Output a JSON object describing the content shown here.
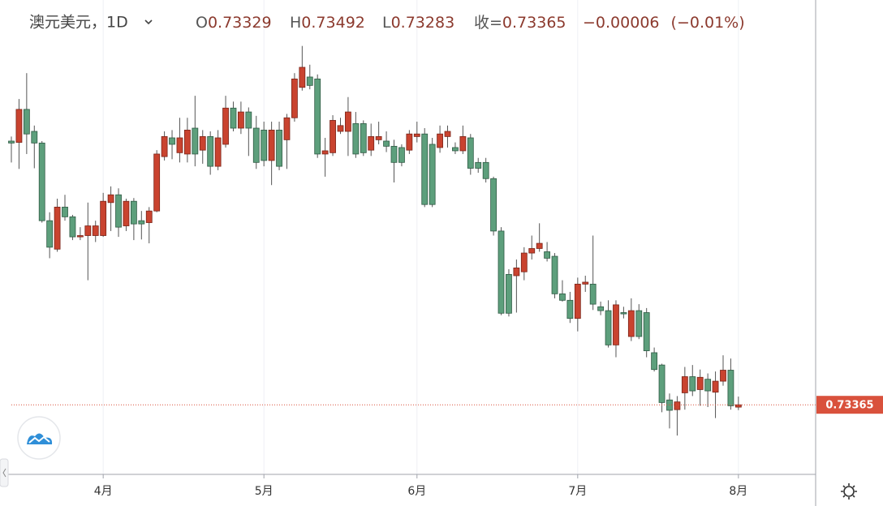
{
  "chart_data": {
    "type": "candlestick",
    "title": "澳元美元，1D",
    "ohlc_labels": [
      "O",
      "H",
      "L",
      "收="
    ],
    "change": "−0.00006",
    "change_pct": "(−0.01%)",
    "categories": [
      null,
      null,
      null,
      null,
      null,
      null,
      null,
      null,
      null,
      null,
      null,
      null,
      "4月",
      null,
      null,
      null,
      null,
      null,
      null,
      null,
      null,
      null,
      null,
      null,
      null,
      null,
      null,
      null,
      null,
      null,
      null,
      null,
      null,
      "5月",
      null,
      null,
      null,
      null,
      null,
      null,
      null,
      null,
      null,
      null,
      null,
      null,
      null,
      null,
      null,
      null,
      null,
      null,
      null,
      "6月",
      null,
      null,
      null,
      null,
      null,
      null,
      null,
      null,
      null,
      null,
      null,
      null,
      null,
      null,
      null,
      null,
      null,
      null,
      null,
      null,
      "7月",
      null,
      null,
      null,
      null,
      null,
      null,
      null,
      null,
      null,
      null,
      null,
      null,
      null,
      null,
      null,
      null,
      null,
      null,
      null,
      null,
      "8月"
    ],
    "open": [
      0.7744,
      0.7742,
      0.7793,
      0.7759,
      0.7741,
      0.7621,
      0.7577,
      0.7642,
      0.7627,
      0.7596,
      0.7598,
      0.7598,
      0.7598,
      0.7649,
      0.7661,
      0.7613,
      0.7651,
      0.7621,
      0.7618,
      0.7636,
      0.772,
      0.7749,
      0.7726,
      0.7724,
      0.7764,
      0.773,
      0.7751,
      0.7705,
      0.7739,
      0.7795,
      0.7764,
      0.7789,
      0.7764,
      0.7761,
      0.7714,
      0.7761,
      0.7746,
      0.778,
      0.7827,
      0.7843,
      0.784,
      0.7724,
      0.7726,
      0.7759,
      0.7759,
      0.7771,
      0.7771,
      0.773,
      0.7746,
      0.7744,
      0.7736,
      0.7734,
      0.773,
      0.7751,
      0.7755,
      0.7739,
      0.7734,
      0.7751,
      0.7734,
      0.7729,
      0.7749,
      0.7711,
      0.7711,
      0.7686,
      0.7605,
      0.7538,
      0.7536,
      0.7542,
      0.7571,
      0.7578,
      0.7573,
      0.7566,
      0.7508,
      0.7498,
      0.747,
      0.7523,
      0.7523,
      0.7488,
      0.7482,
      0.7429,
      0.7479,
      0.7442,
      0.7482,
      0.7479,
      0.7417,
      0.7398,
      0.7344,
      0.7329,
      0.7355,
      0.738,
      0.736,
      0.7376,
      0.7356,
      0.7373,
      0.739,
      0.73329
    ],
    "high": [
      0.7751,
      0.7809,
      0.7849,
      0.7768,
      0.7744,
      0.7634,
      0.7655,
      0.7661,
      0.763,
      0.7611,
      0.7649,
      0.7621,
      0.7664,
      0.7674,
      0.7671,
      0.7655,
      0.7656,
      0.7636,
      0.7642,
      0.773,
      0.7759,
      0.7761,
      0.778,
      0.778,
      0.7814,
      0.7761,
      0.7759,
      0.7761,
      0.7814,
      0.7805,
      0.7805,
      0.7796,
      0.7783,
      0.7774,
      0.7774,
      0.7774,
      0.7786,
      0.7849,
      0.7891,
      0.7862,
      0.7847,
      0.7749,
      0.7784,
      0.778,
      0.7812,
      0.7789,
      0.7776,
      0.7771,
      0.7774,
      0.7759,
      0.7746,
      0.7739,
      0.7761,
      0.7774,
      0.7764,
      0.7749,
      0.7768,
      0.7768,
      0.7742,
      0.7768,
      0.7755,
      0.7718,
      0.7718,
      0.7689,
      0.7611,
      0.7546,
      0.7561,
      0.758,
      0.7598,
      0.7617,
      0.7588,
      0.7571,
      0.7529,
      0.7511,
      0.7533,
      0.7536,
      0.7598,
      0.7496,
      0.7498,
      0.7498,
      0.7488,
      0.7501,
      0.7492,
      0.7486,
      0.7425,
      0.74,
      0.7354,
      0.735,
      0.7395,
      0.7398,
      0.7391,
      0.7385,
      0.7388,
      0.7413,
      0.7408,
      0.73492
    ],
    "low": [
      0.7711,
      0.7701,
      0.7724,
      0.7702,
      0.7618,
      0.7563,
      0.7573,
      0.7621,
      0.7591,
      0.7591,
      0.7529,
      0.7588,
      0.7596,
      0.7605,
      0.7596,
      0.7605,
      0.7591,
      0.7592,
      0.7586,
      0.7634,
      0.7714,
      0.7716,
      0.7711,
      0.7711,
      0.7705,
      0.7709,
      0.7692,
      0.7699,
      0.7734,
      0.7759,
      0.7755,
      0.7721,
      0.7701,
      0.7705,
      0.7676,
      0.7699,
      0.7701,
      0.7774,
      0.7822,
      0.7824,
      0.7718,
      0.7689,
      0.7721,
      0.7755,
      0.7721,
      0.7718,
      0.7721,
      0.7721,
      0.7739,
      0.7727,
      0.768,
      0.7705,
      0.7724,
      0.7742,
      0.7642,
      0.7642,
      0.7726,
      0.7734,
      0.7724,
      0.7724,
      0.7692,
      0.7695,
      0.768,
      0.7598,
      0.7475,
      0.7473,
      0.7479,
      0.7529,
      0.7561,
      0.7573,
      0.7558,
      0.7501,
      0.7496,
      0.7463,
      0.745,
      0.7511,
      0.7483,
      0.7475,
      0.7425,
      0.741,
      0.747,
      0.7435,
      0.7438,
      0.741,
      0.7388,
      0.7325,
      0.73,
      0.7289,
      0.7329,
      0.735,
      0.7335,
      0.7333,
      0.7316,
      0.7366,
      0.7329,
      0.73283
    ],
    "close": [
      0.7741,
      0.7793,
      0.7755,
      0.7741,
      0.7621,
      0.758,
      0.7642,
      0.7627,
      0.7596,
      0.7598,
      0.7613,
      0.7613,
      0.7651,
      0.7661,
      0.7611,
      0.7651,
      0.7616,
      0.7616,
      0.7636,
      0.7724,
      0.7751,
      0.7739,
      0.7749,
      0.7761,
      0.7724,
      0.7751,
      0.7705,
      0.7749,
      0.7795,
      0.7764,
      0.7789,
      0.7764,
      0.7711,
      0.7714,
      0.7761,
      0.7705,
      0.778,
      0.784,
      0.7858,
      0.783,
      0.7724,
      0.7729,
      0.7776,
      0.7768,
      0.7789,
      0.7724,
      0.7726,
      0.7751,
      0.7751,
      0.7736,
      0.7711,
      0.7711,
      0.7755,
      0.7755,
      0.7646,
      0.7646,
      0.7755,
      0.7759,
      0.7729,
      0.7751,
      0.7702,
      0.7702,
      0.7686,
      0.7605,
      0.7478,
      0.7478,
      0.7548,
      0.7571,
      0.7578,
      0.7586,
      0.7563,
      0.7508,
      0.7498,
      0.747,
      0.7523,
      0.7526,
      0.7492,
      0.7482,
      0.7429,
      0.7491,
      0.7477,
      0.7482,
      0.7442,
      0.742,
      0.7391,
      0.734,
      0.7328,
      0.7341,
      0.738,
      0.7358,
      0.7379,
      0.7358,
      0.7373,
      0.739,
      0.7335,
      0.73365
    ],
    "up_color": "#c9432f",
    "down_color": "#5d9f7c",
    "last_price_color": "#d9513c",
    "ylim": [
      0.7229,
      0.7962
    ],
    "grid": true
  }
}
